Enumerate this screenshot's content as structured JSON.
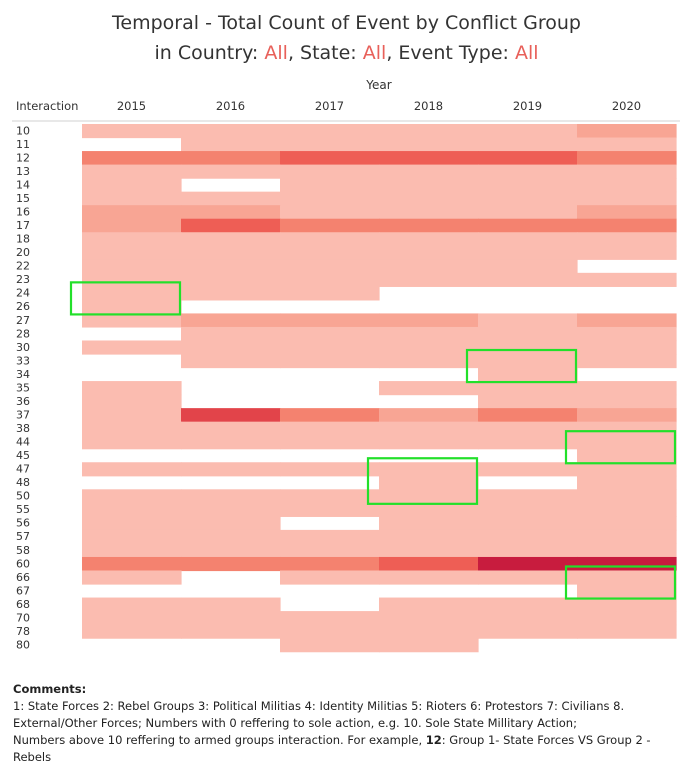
{
  "title": {
    "prefix": "Temporal - Total Count of Event by Conflict Group",
    "in_country_label": "in Country: ",
    "country_value": "All",
    "state_label": ", State: ",
    "state_value": "All",
    "event_type_label": ", Event Type: ",
    "event_type_value": "All"
  },
  "colors": {
    "accent": "#e8605a",
    "scale": [
      "#fde4dd",
      "#fbbcb0",
      "#f8a594",
      "#f4826f",
      "#ee5e55",
      "#e2444a",
      "#c81c3e",
      "#a81436"
    ],
    "highlight": "#22e02a"
  },
  "comments": {
    "title": "Comments:",
    "line1": "1: State Forces 2: Rebel Groups 3: Political Militias 4: Identity Militias 5: Rioters 6: Protestors 7: Civilians 8.",
    "line2": "External/Other Forces;  Numbers with 0 reffering to sole action, e.g. 10. Sole State Millitary Action;",
    "line3_prefix": "Numbers above 10 reffering to armed groups interaction. For example,  ",
    "line3_bold": "12",
    "line3_suffix": ": Group 1- State Forces VS Group  2 - Rebels"
  },
  "chart_data": {
    "type": "heatmap",
    "title": "Temporal - Total Count of Event by Conflict Group in Country: All, State: All, Event Type: All",
    "x_title": "Year",
    "y_title": "Interaction",
    "x": [
      "2015",
      "2016",
      "2017",
      "2018",
      "2019",
      "2020"
    ],
    "y": [
      "10",
      "11",
      "12",
      "13",
      "14",
      "15",
      "16",
      "17",
      "18",
      "20",
      "22",
      "23",
      "24",
      "26",
      "27",
      "28",
      "30",
      "33",
      "34",
      "35",
      "36",
      "37",
      "38",
      "44",
      "45",
      "47",
      "48",
      "50",
      "55",
      "56",
      "57",
      "58",
      "60",
      "66",
      "67",
      "68",
      "70",
      "78",
      "80"
    ],
    "intensity_levels": "0 = no data, 1 = lowest count ... 7 = highest count (relative colour intensity)",
    "values": [
      [
        1,
        1,
        1,
        1,
        1,
        2
      ],
      [
        0,
        1,
        1,
        1,
        1,
        1
      ],
      [
        3,
        3,
        4,
        4,
        4,
        3
      ],
      [
        1,
        1,
        1,
        1,
        1,
        1
      ],
      [
        1,
        0,
        1,
        1,
        1,
        1
      ],
      [
        1,
        1,
        1,
        1,
        1,
        1
      ],
      [
        2,
        2,
        1,
        1,
        1,
        2
      ],
      [
        2,
        4,
        3,
        3,
        3,
        3
      ],
      [
        1,
        1,
        1,
        1,
        1,
        1
      ],
      [
        1,
        1,
        1,
        1,
        1,
        1
      ],
      [
        1,
        1,
        1,
        1,
        1,
        0
      ],
      [
        1,
        1,
        1,
        1,
        1,
        1
      ],
      [
        1,
        1,
        1,
        0,
        0,
        0
      ],
      [
        1,
        0,
        0,
        0,
        0,
        0
      ],
      [
        1,
        2,
        2,
        2,
        1,
        2
      ],
      [
        0,
        1,
        1,
        1,
        1,
        1
      ],
      [
        1,
        1,
        1,
        1,
        1,
        1
      ],
      [
        0,
        1,
        1,
        1,
        1,
        1
      ],
      [
        0,
        0,
        0,
        0,
        1,
        0
      ],
      [
        1,
        0,
        0,
        1,
        1,
        1
      ],
      [
        1,
        0,
        0,
        0,
        1,
        1
      ],
      [
        1,
        5,
        3,
        2,
        3,
        2
      ],
      [
        1,
        1,
        1,
        1,
        1,
        1
      ],
      [
        1,
        1,
        1,
        1,
        1,
        1
      ],
      [
        0,
        0,
        0,
        0,
        0,
        1
      ],
      [
        1,
        1,
        1,
        1,
        1,
        1
      ],
      [
        0,
        0,
        0,
        1,
        0,
        1
      ],
      [
        1,
        1,
        1,
        1,
        1,
        1
      ],
      [
        1,
        1,
        1,
        1,
        1,
        1
      ],
      [
        1,
        1,
        0,
        1,
        1,
        1
      ],
      [
        1,
        1,
        1,
        1,
        1,
        1
      ],
      [
        1,
        1,
        1,
        1,
        1,
        1
      ],
      [
        3,
        3,
        3,
        4,
        6,
        6
      ],
      [
        1,
        0,
        1,
        1,
        1,
        1
      ],
      [
        0,
        0,
        0,
        0,
        0,
        1
      ],
      [
        1,
        1,
        0,
        1,
        1,
        1
      ],
      [
        1,
        1,
        1,
        1,
        1,
        1
      ],
      [
        1,
        1,
        1,
        1,
        1,
        1
      ],
      [
        0,
        0,
        1,
        1,
        0,
        0
      ]
    ],
    "highlights": [
      {
        "from_year": "2015",
        "to_year": "2015",
        "from_interaction": "24",
        "to_interaction": "26"
      },
      {
        "from_year": "2019",
        "to_year": "2019",
        "from_interaction": "33",
        "to_interaction": "34"
      },
      {
        "from_year": "2020",
        "to_year": "2020",
        "from_interaction": "44",
        "to_interaction": "45"
      },
      {
        "from_year": "2018",
        "to_year": "2018",
        "from_interaction": "47",
        "to_interaction": "50"
      },
      {
        "from_year": "2020",
        "to_year": "2020",
        "from_interaction": "66",
        "to_interaction": "67"
      }
    ]
  }
}
